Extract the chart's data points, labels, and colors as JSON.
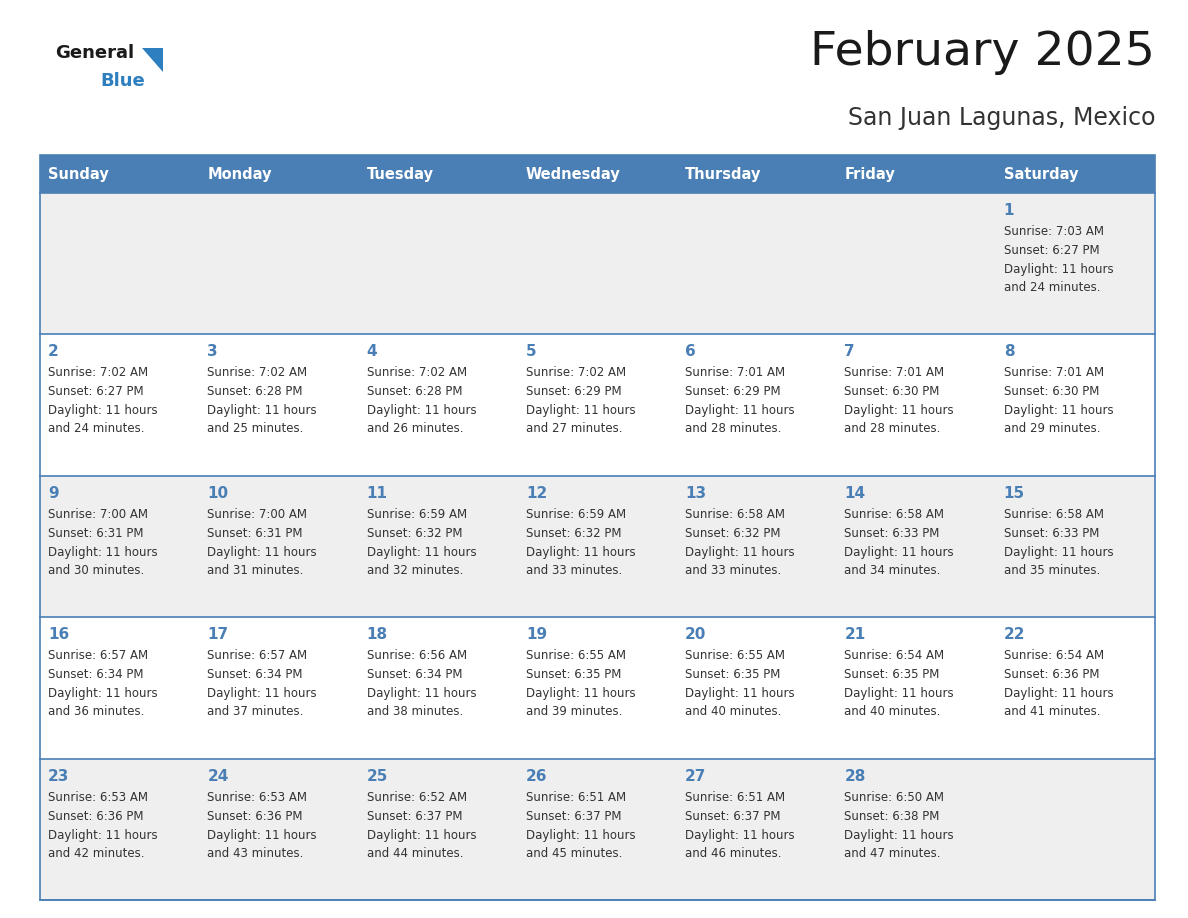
{
  "title": "February 2025",
  "subtitle": "San Juan Lagunas, Mexico",
  "days_of_week": [
    "Sunday",
    "Monday",
    "Tuesday",
    "Wednesday",
    "Thursday",
    "Friday",
    "Saturday"
  ],
  "header_bg": "#4a7fb5",
  "header_text": "#ffffff",
  "cell_bg_light": "#efefef",
  "cell_bg_white": "#ffffff",
  "divider_color": "#4a7fb5",
  "text_color": "#333333",
  "day_num_color": "#4a7fb5",
  "title_color": "#1a1a1a",
  "subtitle_color": "#333333",
  "logo_general_color": "#1a1a1a",
  "logo_blue_color": "#2e7fc0",
  "weeks": [
    [
      {
        "day": null,
        "sunrise": null,
        "sunset": null,
        "daylight": null
      },
      {
        "day": null,
        "sunrise": null,
        "sunset": null,
        "daylight": null
      },
      {
        "day": null,
        "sunrise": null,
        "sunset": null,
        "daylight": null
      },
      {
        "day": null,
        "sunrise": null,
        "sunset": null,
        "daylight": null
      },
      {
        "day": null,
        "sunrise": null,
        "sunset": null,
        "daylight": null
      },
      {
        "day": null,
        "sunrise": null,
        "sunset": null,
        "daylight": null
      },
      {
        "day": 1,
        "sunrise": "7:03 AM",
        "sunset": "6:27 PM",
        "daylight": "11 hours\nand 24 minutes."
      }
    ],
    [
      {
        "day": 2,
        "sunrise": "7:02 AM",
        "sunset": "6:27 PM",
        "daylight": "11 hours\nand 24 minutes."
      },
      {
        "day": 3,
        "sunrise": "7:02 AM",
        "sunset": "6:28 PM",
        "daylight": "11 hours\nand 25 minutes."
      },
      {
        "day": 4,
        "sunrise": "7:02 AM",
        "sunset": "6:28 PM",
        "daylight": "11 hours\nand 26 minutes."
      },
      {
        "day": 5,
        "sunrise": "7:02 AM",
        "sunset": "6:29 PM",
        "daylight": "11 hours\nand 27 minutes."
      },
      {
        "day": 6,
        "sunrise": "7:01 AM",
        "sunset": "6:29 PM",
        "daylight": "11 hours\nand 28 minutes."
      },
      {
        "day": 7,
        "sunrise": "7:01 AM",
        "sunset": "6:30 PM",
        "daylight": "11 hours\nand 28 minutes."
      },
      {
        "day": 8,
        "sunrise": "7:01 AM",
        "sunset": "6:30 PM",
        "daylight": "11 hours\nand 29 minutes."
      }
    ],
    [
      {
        "day": 9,
        "sunrise": "7:00 AM",
        "sunset": "6:31 PM",
        "daylight": "11 hours\nand 30 minutes."
      },
      {
        "day": 10,
        "sunrise": "7:00 AM",
        "sunset": "6:31 PM",
        "daylight": "11 hours\nand 31 minutes."
      },
      {
        "day": 11,
        "sunrise": "6:59 AM",
        "sunset": "6:32 PM",
        "daylight": "11 hours\nand 32 minutes."
      },
      {
        "day": 12,
        "sunrise": "6:59 AM",
        "sunset": "6:32 PM",
        "daylight": "11 hours\nand 33 minutes."
      },
      {
        "day": 13,
        "sunrise": "6:58 AM",
        "sunset": "6:32 PM",
        "daylight": "11 hours\nand 33 minutes."
      },
      {
        "day": 14,
        "sunrise": "6:58 AM",
        "sunset": "6:33 PM",
        "daylight": "11 hours\nand 34 minutes."
      },
      {
        "day": 15,
        "sunrise": "6:58 AM",
        "sunset": "6:33 PM",
        "daylight": "11 hours\nand 35 minutes."
      }
    ],
    [
      {
        "day": 16,
        "sunrise": "6:57 AM",
        "sunset": "6:34 PM",
        "daylight": "11 hours\nand 36 minutes."
      },
      {
        "day": 17,
        "sunrise": "6:57 AM",
        "sunset": "6:34 PM",
        "daylight": "11 hours\nand 37 minutes."
      },
      {
        "day": 18,
        "sunrise": "6:56 AM",
        "sunset": "6:34 PM",
        "daylight": "11 hours\nand 38 minutes."
      },
      {
        "day": 19,
        "sunrise": "6:55 AM",
        "sunset": "6:35 PM",
        "daylight": "11 hours\nand 39 minutes."
      },
      {
        "day": 20,
        "sunrise": "6:55 AM",
        "sunset": "6:35 PM",
        "daylight": "11 hours\nand 40 minutes."
      },
      {
        "day": 21,
        "sunrise": "6:54 AM",
        "sunset": "6:35 PM",
        "daylight": "11 hours\nand 40 minutes."
      },
      {
        "day": 22,
        "sunrise": "6:54 AM",
        "sunset": "6:36 PM",
        "daylight": "11 hours\nand 41 minutes."
      }
    ],
    [
      {
        "day": 23,
        "sunrise": "6:53 AM",
        "sunset": "6:36 PM",
        "daylight": "11 hours\nand 42 minutes."
      },
      {
        "day": 24,
        "sunrise": "6:53 AM",
        "sunset": "6:36 PM",
        "daylight": "11 hours\nand 43 minutes."
      },
      {
        "day": 25,
        "sunrise": "6:52 AM",
        "sunset": "6:37 PM",
        "daylight": "11 hours\nand 44 minutes."
      },
      {
        "day": 26,
        "sunrise": "6:51 AM",
        "sunset": "6:37 PM",
        "daylight": "11 hours\nand 45 minutes."
      },
      {
        "day": 27,
        "sunrise": "6:51 AM",
        "sunset": "6:37 PM",
        "daylight": "11 hours\nand 46 minutes."
      },
      {
        "day": 28,
        "sunrise": "6:50 AM",
        "sunset": "6:38 PM",
        "daylight": "11 hours\nand 47 minutes."
      },
      {
        "day": null,
        "sunrise": null,
        "sunset": null,
        "daylight": null
      }
    ]
  ]
}
